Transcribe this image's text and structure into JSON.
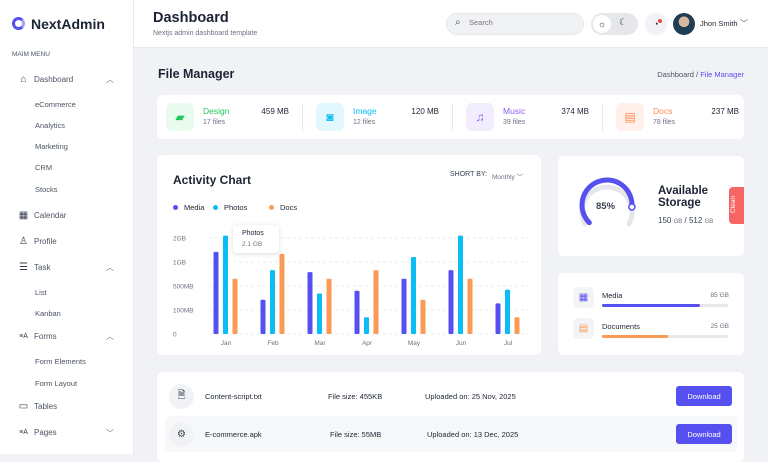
{
  "sidebar": {
    "brand": "NextAdmin",
    "menu_label": "MAIM MENU",
    "items": [
      {
        "label": "Dashboard",
        "icon": "home-icon",
        "expanded": true,
        "children": [
          "eCommerce",
          "Analytics",
          "Marketing",
          "CRM",
          "Stocks"
        ]
      },
      {
        "label": "Calendar",
        "icon": "calendar-icon"
      },
      {
        "label": "Profile",
        "icon": "user-icon"
      },
      {
        "label": "Task",
        "icon": "task-list-icon",
        "expanded": true,
        "children": [
          "List",
          "Kanban"
        ]
      },
      {
        "label": "Forms",
        "icon": "forms-icon",
        "expanded": true,
        "children": [
          "Form Elements",
          "Form Layout"
        ]
      },
      {
        "label": "Tables",
        "icon": "table-icon"
      },
      {
        "label": "Pages",
        "icon": "pages-icon",
        "expanded": false
      }
    ]
  },
  "header": {
    "title": "Dashboard",
    "subtitle": "Nextjs admin dashboard template",
    "search_placeholder": "Search",
    "user_name": "Jhon Smith"
  },
  "page": {
    "title": "File Manager",
    "breadcrumb": [
      "Dashboard",
      "/",
      "File Manager"
    ]
  },
  "stats": [
    {
      "name": "Design",
      "count": "17 files",
      "size": "459 MB",
      "color": "#22c55e",
      "bg": "#e9fbef",
      "icon": "folder-icon"
    },
    {
      "name": "Image",
      "count": "12 files",
      "size": "120 MB",
      "color": "#0abef5",
      "bg": "#e3f7fe",
      "icon": "image-icon"
    },
    {
      "name": "Music",
      "count": "39 files",
      "size": "374 MB",
      "color": "#8b5cf6",
      "bg": "#f1edfe",
      "icon": "music-icon"
    },
    {
      "name": "Docs",
      "count": "78 files",
      "size": "237 MB",
      "color": "#fb8a4c",
      "bg": "#fff1ea",
      "icon": "document-icon"
    }
  ],
  "activity": {
    "title": "Activity Chart",
    "sort_label": "SHORT BY:",
    "sort_value": "Monthly",
    "tooltip": {
      "title": "Photos",
      "value": "2.1 GB"
    }
  },
  "chart_data": {
    "type": "bar",
    "title": "Activity Chart",
    "categories": [
      "Jan",
      "Feb",
      "Mar",
      "Apr",
      "May",
      "Jun",
      "Jul"
    ],
    "y_ticks": [
      "0",
      "100MB",
      "500MB",
      "1GB",
      "2GB"
    ],
    "y_tick_values_mb": [
      0,
      100,
      500,
      1000,
      2000
    ],
    "grid": true,
    "legend": "top-left",
    "series": [
      {
        "name": "Media",
        "color": "#5750f1",
        "values_mb": [
          1420,
          270,
          790,
          420,
          650,
          830,
          210
        ]
      },
      {
        "name": "Photos",
        "color": "#0abef5",
        "values_mb": [
          2100,
          830,
          375,
          70,
          1210,
          2100,
          440
        ]
      },
      {
        "name": "Docs",
        "color": "#fb9a55",
        "values_mb": [
          650,
          1340,
          650,
          830,
          270,
          650,
          70
        ]
      }
    ]
  },
  "storage": {
    "percent": 85,
    "percent_label": "85%",
    "title": "Available Storage",
    "used": "150",
    "used_unit": "GB",
    "sep": "/",
    "total": "512",
    "total_unit": "GB",
    "clean_label": "Clean"
  },
  "usage": [
    {
      "name": "Media",
      "size": "85 GB",
      "fill": 0.78,
      "color": "#5750f1",
      "icon": "film-icon"
    },
    {
      "name": "Documents",
      "size": "25 GB",
      "fill": 0.52,
      "color": "#fb9a55",
      "icon": "document-icon"
    }
  ],
  "files": [
    {
      "name": "Content-script.txt",
      "size": "File size: 455KB",
      "uploaded": "Uploaded on: 25 Nov, 2025",
      "action": "Download",
      "icon": "text-file-icon"
    },
    {
      "name": "E-commerce.apk",
      "size": "File size: 55MB",
      "uploaded": "Uploaded on: 13 Dec, 2025",
      "action": "Download",
      "icon": "android-icon"
    }
  ]
}
